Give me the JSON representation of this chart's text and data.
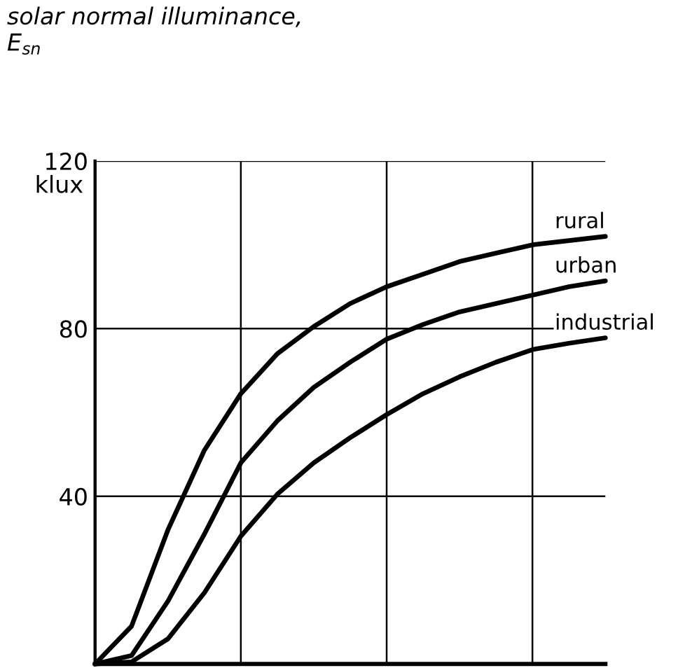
{
  "chart_data": {
    "type": "line",
    "ylabel": "solar normal illuminance,\nE$_{sn}$",
    "annotations": [
      "klux"
    ],
    "categories": [
      null,
      null,
      null,
      null,
      null,
      null,
      null,
      null,
      null,
      null,
      null,
      null,
      null,
      null,
      null
    ],
    "ylim": [
      0,
      120
    ],
    "yticks": [
      40,
      80,
      120
    ],
    "grid": true,
    "legend": false,
    "marker": "none",
    "line_style": "solid",
    "series": [
      {
        "name": "rural",
        "color": "#000000",
        "values": [
          0,
          9,
          32,
          51,
          64.5,
          74,
          80.5,
          86,
          90,
          93,
          96,
          98,
          100,
          101,
          102
        ]
      },
      {
        "name": "urban",
        "color": "#000000",
        "values": [
          0,
          2,
          15,
          31,
          48,
          58,
          66,
          72,
          77.5,
          81,
          84,
          86,
          88,
          90,
          91.4
        ]
      },
      {
        "name": "industrial",
        "color": "#000000",
        "values": [
          0,
          0.5,
          6,
          17,
          30.5,
          40.5,
          48,
          54,
          59.5,
          64.5,
          68.5,
          72,
          75,
          76.5,
          77.8
        ]
      }
    ]
  }
}
